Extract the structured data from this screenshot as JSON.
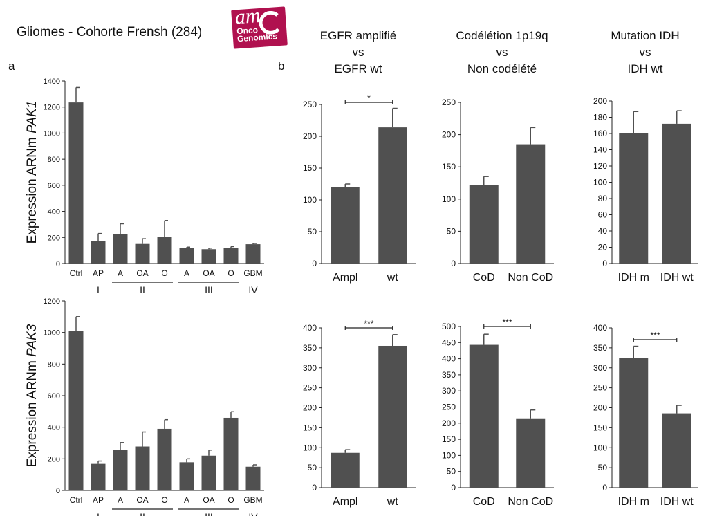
{
  "header": {
    "title": "Gliomes - Cohorte Frensh (284)",
    "logo": {
      "line1": "am",
      "line2": "Onco",
      "line3": "Genomics",
      "color": "#b0114f"
    },
    "panel_a": "a",
    "panel_b": "b",
    "columns": [
      {
        "line1": "EGFR amplifié",
        "line2": "vs",
        "line3": "EGFR wt"
      },
      {
        "line1": "Codélétion 1p19q",
        "line2": "vs",
        "line3": "Non codélété"
      },
      {
        "line1": "Mutation IDH",
        "line2": "vs",
        "line3": "IDH wt"
      }
    ]
  },
  "colors": {
    "bar": "#505050",
    "axis": "#222222",
    "background": "#ffffff"
  },
  "chart_data": [
    {
      "id": "pak1-grades",
      "type": "bar",
      "ylabel_prefix": "Expression ARNm ",
      "ylabel_gene": "PAK1",
      "categories": [
        "Ctrl",
        "AP",
        "A",
        "OA",
        "O",
        "A",
        "OA",
        "O",
        "GBM"
      ],
      "values": [
        1235,
        175,
        225,
        150,
        205,
        118,
        110,
        120,
        148
      ],
      "errors": [
        115,
        55,
        80,
        40,
        125,
        8,
        8,
        10,
        6
      ],
      "ylim": [
        0,
        1400
      ],
      "yticks": [
        0,
        200,
        400,
        600,
        800,
        1000,
        1200,
        1400
      ],
      "grades": [
        {
          "label": "I",
          "from": 1,
          "to": 1
        },
        {
          "label": "II",
          "from": 2,
          "to": 4
        },
        {
          "label": "III",
          "from": 5,
          "to": 7
        },
        {
          "label": "IV",
          "from": 8,
          "to": 8
        }
      ]
    },
    {
      "id": "pak3-grades",
      "type": "bar",
      "ylabel_prefix": "Expression ARNm ",
      "ylabel_gene": "PAK3",
      "categories": [
        "Ctrl",
        "AP",
        "A",
        "OA",
        "O",
        "A",
        "OA",
        "O",
        "GBM"
      ],
      "values": [
        1010,
        168,
        258,
        278,
        390,
        178,
        220,
        460,
        150
      ],
      "errors": [
        90,
        18,
        45,
        92,
        58,
        22,
        35,
        38,
        12
      ],
      "ylim": [
        0,
        1200
      ],
      "yticks": [
        0,
        200,
        400,
        600,
        800,
        1000,
        1200
      ],
      "grades": [
        {
          "label": "I",
          "from": 1,
          "to": 1
        },
        {
          "label": "II",
          "from": 2,
          "to": 4
        },
        {
          "label": "III",
          "from": 5,
          "to": 7
        },
        {
          "label": "IV",
          "from": 8,
          "to": 8
        }
      ]
    },
    {
      "id": "pak1-egfr",
      "type": "bar",
      "categories": [
        "Ampl",
        "wt"
      ],
      "values": [
        120,
        214
      ],
      "errors": [
        5,
        30
      ],
      "ylim": [
        0,
        250
      ],
      "yticks": [
        0,
        50,
        100,
        150,
        200,
        250
      ],
      "significance": "*"
    },
    {
      "id": "pak1-codel",
      "type": "bar",
      "categories": [
        "CoD",
        "Non CoD"
      ],
      "values": [
        122,
        185
      ],
      "errors": [
        13,
        26
      ],
      "ylim": [
        0,
        250
      ],
      "yticks": [
        0,
        50,
        100,
        150,
        200,
        250
      ],
      "significance": ""
    },
    {
      "id": "pak1-idh",
      "type": "bar",
      "categories": [
        "IDH m",
        "IDH wt"
      ],
      "values": [
        160,
        172
      ],
      "errors": [
        27,
        16
      ],
      "ylim": [
        0,
        200
      ],
      "yticks": [
        0,
        20,
        40,
        60,
        80,
        100,
        120,
        140,
        160,
        180,
        200
      ],
      "significance": ""
    },
    {
      "id": "pak3-egfr",
      "type": "bar",
      "categories": [
        "Ampl",
        "wt"
      ],
      "values": [
        87,
        355
      ],
      "errors": [
        8,
        28
      ],
      "ylim": [
        0,
        400
      ],
      "yticks": [
        0,
        50,
        100,
        150,
        200,
        250,
        300,
        350,
        400
      ],
      "significance": "***"
    },
    {
      "id": "pak3-codel",
      "type": "bar",
      "categories": [
        "CoD",
        "Non CoD"
      ],
      "values": [
        443,
        213
      ],
      "errors": [
        33,
        28
      ],
      "ylim": [
        0,
        500
      ],
      "yticks": [
        0,
        50,
        100,
        150,
        200,
        250,
        300,
        350,
        400,
        450,
        500
      ],
      "significance": "***"
    },
    {
      "id": "pak3-idh",
      "type": "bar",
      "categories": [
        "IDH m",
        "IDH wt"
      ],
      "values": [
        324,
        186
      ],
      "errors": [
        30,
        20
      ],
      "ylim": [
        0,
        400
      ],
      "yticks": [
        0,
        50,
        100,
        150,
        200,
        250,
        300,
        350,
        400
      ],
      "significance": "***"
    }
  ]
}
